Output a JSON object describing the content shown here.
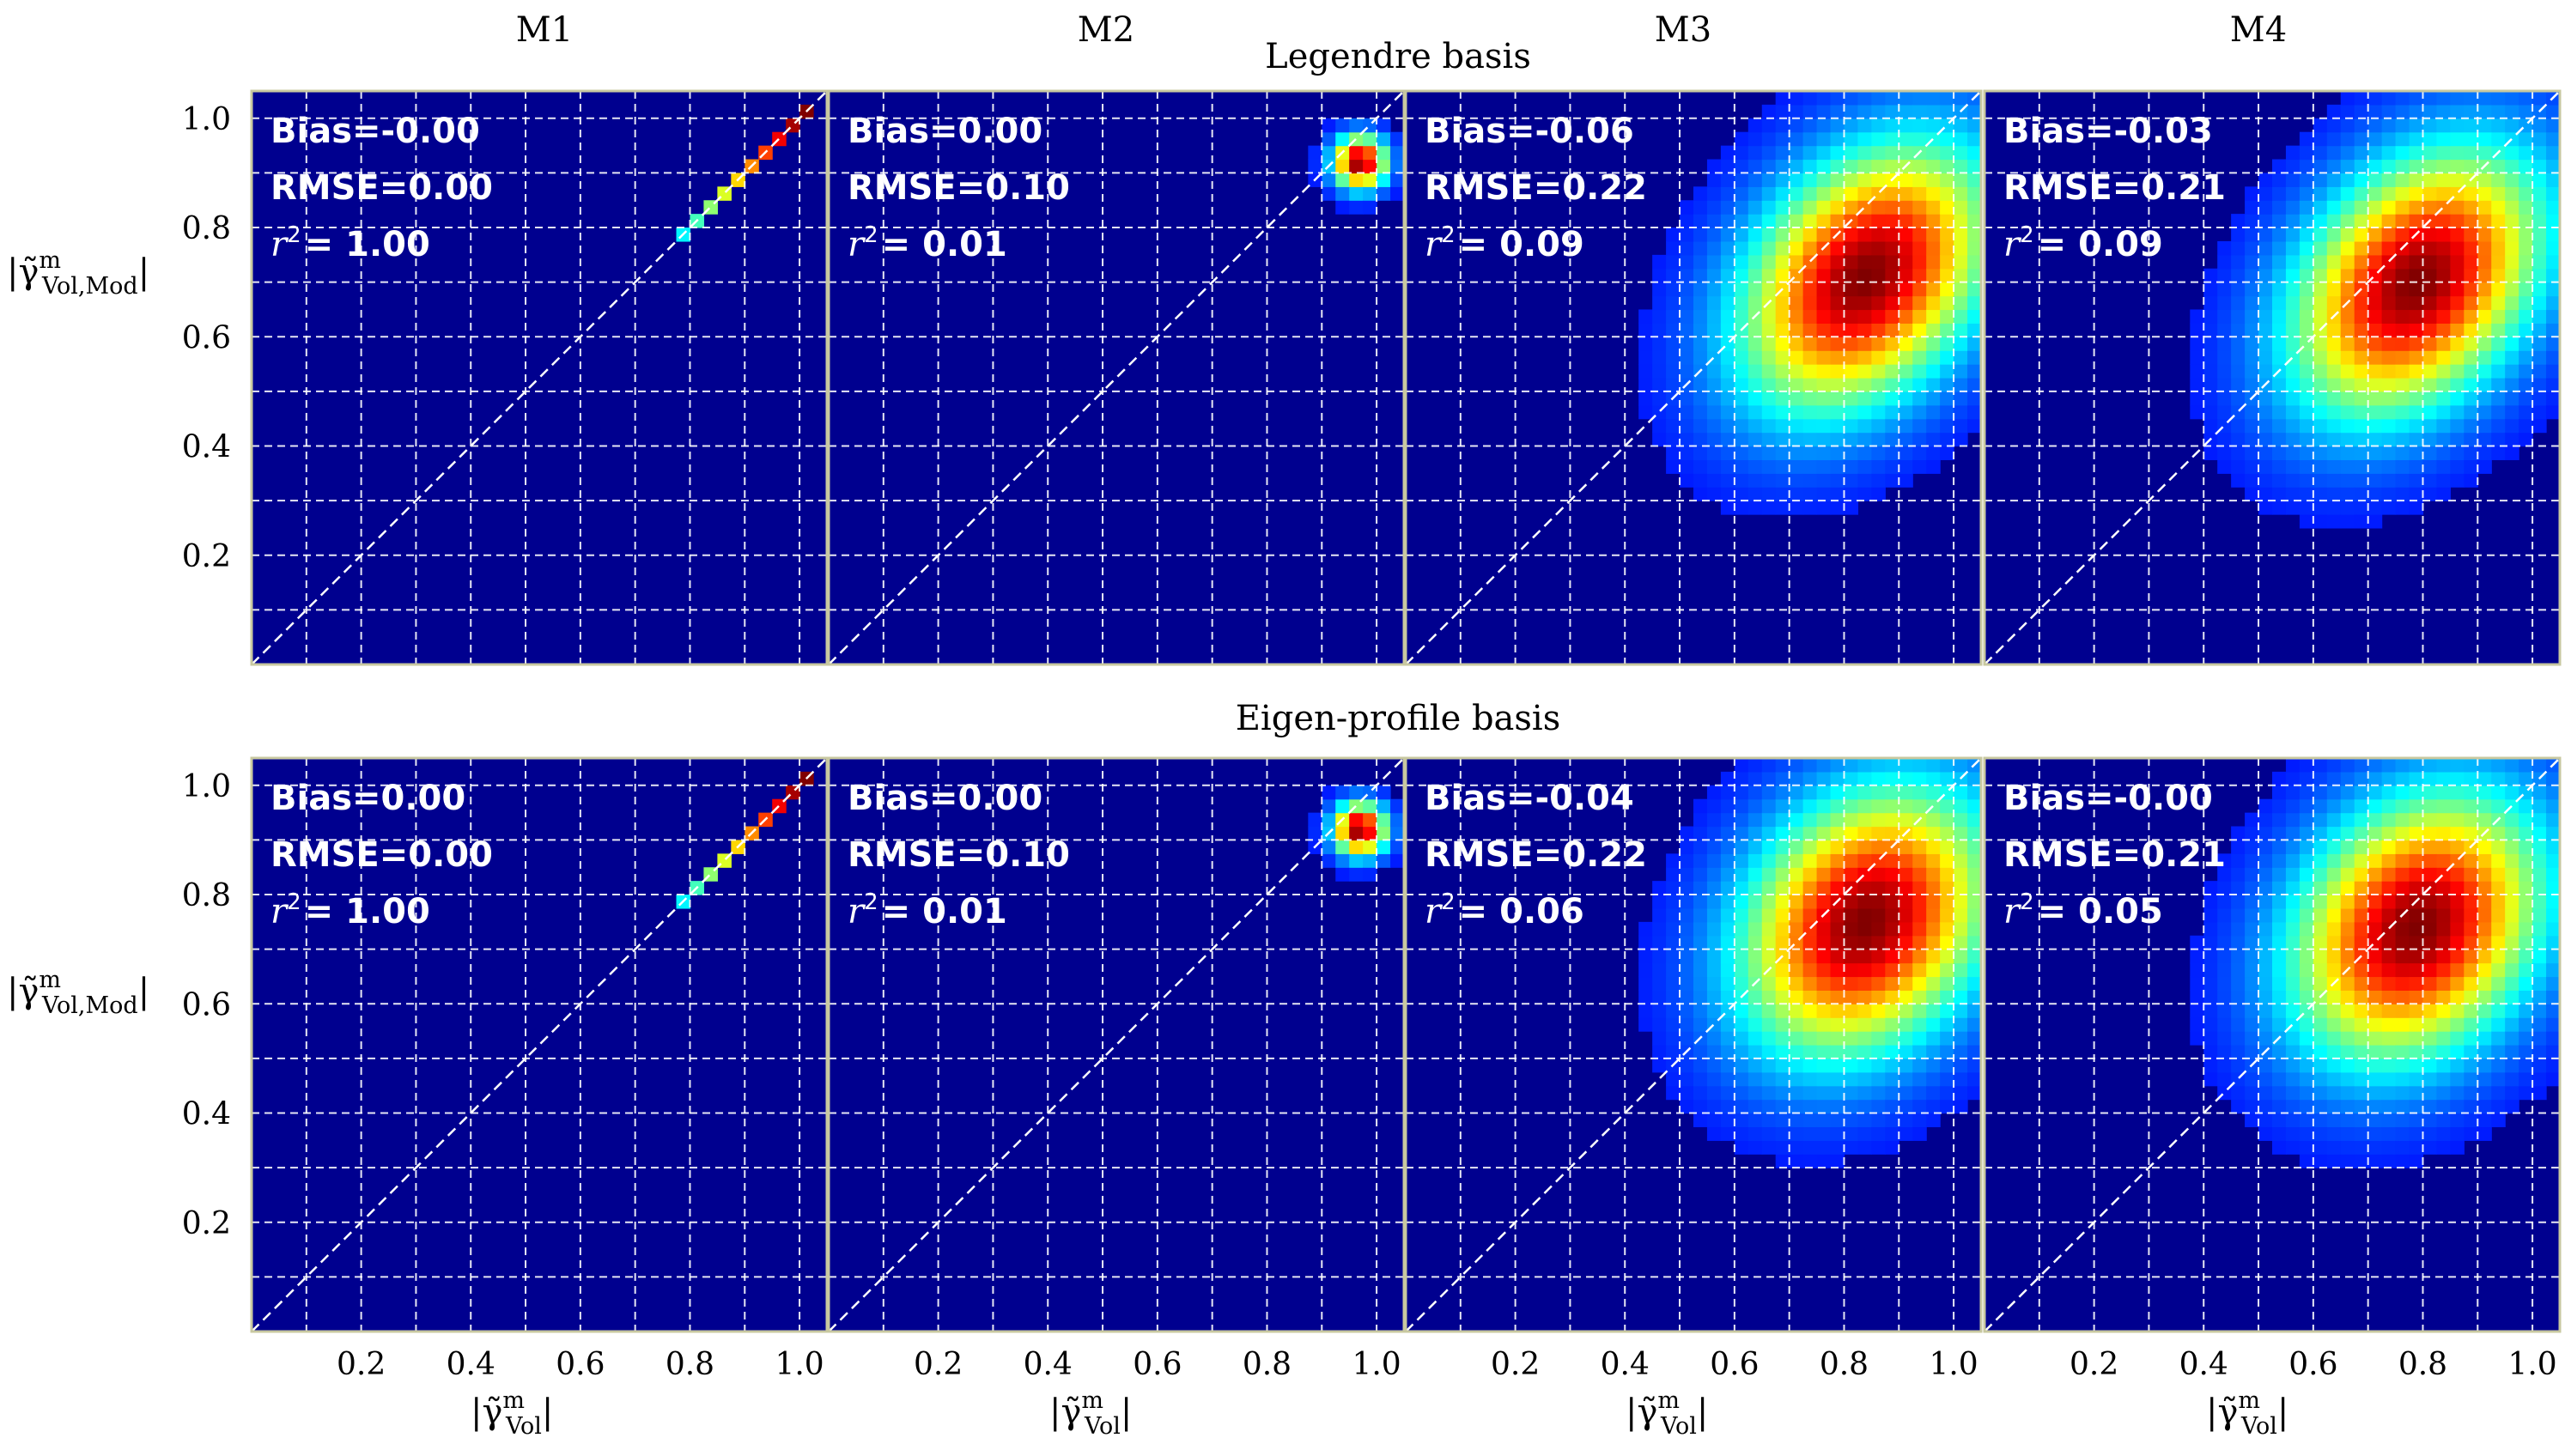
{
  "figure": {
    "column_titles": [
      "M1",
      "M2",
      "M3",
      "M4"
    ],
    "row_titles": [
      "Legendre basis",
      "Eigen-profile basis"
    ],
    "ylabel": "|γ̃ᵐ_Vol,Mod|",
    "xlabel": "|γ̃ᵐ_Vol|",
    "ylabel_main": "|γ̃",
    "ylabel_sup": "m",
    "ylabel_sub": "Vol,Mod",
    "ylabel_end": "|",
    "xlabel_main": "|γ̃",
    "xlabel_sup": "m",
    "xlabel_sub": "Vol",
    "xlabel_end": "|",
    "colors": {
      "background": "#00008f",
      "grid": "#ffffff",
      "panel_border": "#c8c8a0",
      "text": "#000000",
      "stat_text": "#ffffff"
    },
    "colormap": "jet"
  },
  "chart_data": {
    "type": "heatmap",
    "xlim": [
      0,
      1.05
    ],
    "ylim": [
      0,
      1.05
    ],
    "xticks": [
      0.2,
      0.4,
      0.6,
      0.8,
      1.0
    ],
    "yticks": [
      0.2,
      0.4,
      0.6,
      0.8,
      1.0
    ],
    "xtick_labels": [
      "0.2",
      "0.4",
      "0.6",
      "0.8",
      "1.0"
    ],
    "ytick_labels": [
      "0.2",
      "0.4",
      "0.6",
      "0.8",
      "1.0"
    ],
    "grid_step": 0.1,
    "grid": true,
    "one_to_one_line": true,
    "bins": 42,
    "rows": [
      {
        "name": "Legendre basis",
        "panels": [
          {
            "model": "M1",
            "bias": "Bias=-0.00",
            "rmse": "RMSE=0.00",
            "r2_value": "= 1.00",
            "density": {
              "kind": "diagonal",
              "from": 0.78,
              "to": 1.0
            }
          },
          {
            "model": "M2",
            "bias": "Bias=0.00",
            "rmse": "RMSE=0.10",
            "r2_value": "= 0.01",
            "density": {
              "kind": "blob",
              "cx": 0.97,
              "cy": 0.92,
              "sx": 0.03,
              "sy": 0.03,
              "rho": 0.0
            }
          },
          {
            "model": "M3",
            "bias": "Bias=-0.06",
            "rmse": "RMSE=0.22",
            "r2_value": "= 0.09",
            "density": {
              "kind": "blob",
              "cx": 0.84,
              "cy": 0.71,
              "sx": 0.14,
              "sy": 0.15,
              "rho": 0.35
            }
          },
          {
            "model": "M4",
            "bias": "Bias=-0.03",
            "rmse": "RMSE=0.21",
            "r2_value": "= 0.09",
            "density": {
              "kind": "blob",
              "cx": 0.79,
              "cy": 0.7,
              "sx": 0.14,
              "sy": 0.15,
              "rho": 0.35
            }
          }
        ]
      },
      {
        "name": "Eigen-profile basis",
        "panels": [
          {
            "model": "M1",
            "bias": "Bias=0.00",
            "rmse": "RMSE=0.00",
            "r2_value": "= 1.00",
            "density": {
              "kind": "diagonal",
              "from": 0.78,
              "to": 1.0
            }
          },
          {
            "model": "M2",
            "bias": "Bias=0.00",
            "rmse": "RMSE=0.10",
            "r2_value": "= 0.01",
            "density": {
              "kind": "blob",
              "cx": 0.97,
              "cy": 0.92,
              "sx": 0.03,
              "sy": 0.03,
              "rho": 0.0
            }
          },
          {
            "model": "M3",
            "bias": "Bias=-0.04",
            "rmse": "RMSE=0.22",
            "r2_value": "= 0.06",
            "density": {
              "kind": "blob",
              "cx": 0.84,
              "cy": 0.75,
              "sx": 0.14,
              "sy": 0.15,
              "rho": 0.25
            }
          },
          {
            "model": "M4",
            "bias": "Bias=-0.00",
            "rmse": "RMSE=0.21",
            "r2_value": "= 0.05",
            "density": {
              "kind": "blob",
              "cx": 0.79,
              "cy": 0.74,
              "sx": 0.14,
              "sy": 0.15,
              "rho": 0.25
            }
          }
        ]
      }
    ]
  }
}
